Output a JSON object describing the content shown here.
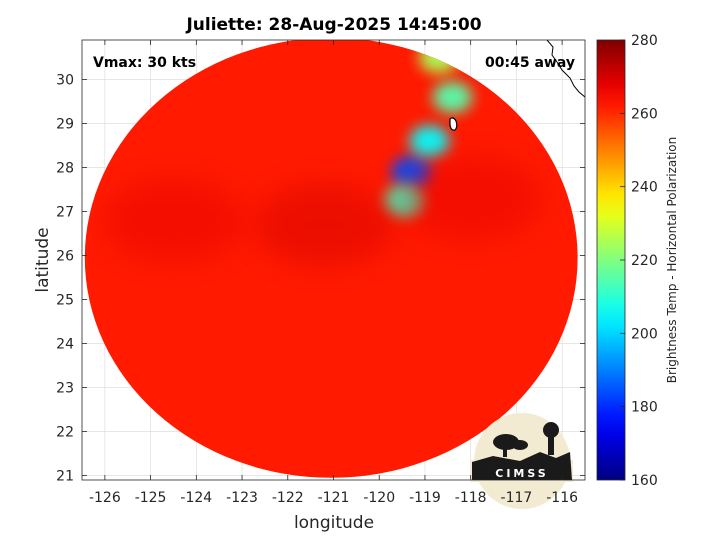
{
  "chart_data": {
    "type": "heatmap",
    "title": "Juliette: 28-Aug-2025 14:45:00",
    "annotations": {
      "left": "Vmax: 30 kts",
      "right": "00:45 away"
    },
    "xlabel": "longitude",
    "ylabel": "latitude",
    "xlim": [
      -126.5,
      -115.5
    ],
    "ylim": [
      20.9,
      30.9
    ],
    "x_ticks": [
      -126,
      -125,
      -124,
      -123,
      -122,
      -121,
      -120,
      -119,
      -118,
      -117,
      -116
    ],
    "x_tick_labels": [
      "-126",
      "-125",
      "-124",
      "-123",
      "-122",
      "-121",
      "-120",
      "-119",
      "-118",
      "-117",
      "-116"
    ],
    "y_ticks": [
      21,
      22,
      23,
      24,
      25,
      26,
      27,
      28,
      29,
      30
    ],
    "y_tick_labels": [
      "21",
      "22",
      "23",
      "24",
      "25",
      "26",
      "27",
      "28",
      "29",
      "30"
    ],
    "grid": true,
    "colorbar": {
      "label": "Brightness Temp - Horizontal Polarization",
      "range": [
        160,
        280
      ],
      "ticks": [
        160,
        180,
        200,
        220,
        240,
        260,
        280
      ],
      "tick_labels": [
        "160",
        "180",
        "200",
        "220",
        "240",
        "260",
        "280"
      ],
      "colormap": "jet"
    },
    "field": {
      "background_value": 262,
      "swath_center": [
        -121.05,
        25.95
      ],
      "swath_radius_deg_lat": 5.0,
      "features": [
        {
          "name": "cold-band",
          "lon": -119.3,
          "lat": 27.9,
          "value": 184
        },
        {
          "name": "cold-band-south",
          "lon": -119.45,
          "lat": 27.25,
          "value": 212
        },
        {
          "name": "cold-band-north",
          "lon": -118.9,
          "lat": 28.6,
          "value": 205
        },
        {
          "name": "northern-plume",
          "lon": -118.4,
          "lat": 29.6,
          "value": 215
        },
        {
          "name": "northern-edge",
          "lon": -118.7,
          "lat": 30.5,
          "value": 225
        },
        {
          "name": "warm-core-west",
          "lon": -124.5,
          "lat": 26.8,
          "value": 268
        },
        {
          "name": "warm-core-center",
          "lon": -121.2,
          "lat": 26.7,
          "value": 270
        },
        {
          "name": "warm-core-east",
          "lon": -118.0,
          "lat": 27.3,
          "value": 268
        }
      ]
    }
  },
  "logo": {
    "text": "CIMSS"
  },
  "colors": {
    "coastline": "#000000",
    "grid": "#d9d9d9",
    "frame": "#262626"
  }
}
